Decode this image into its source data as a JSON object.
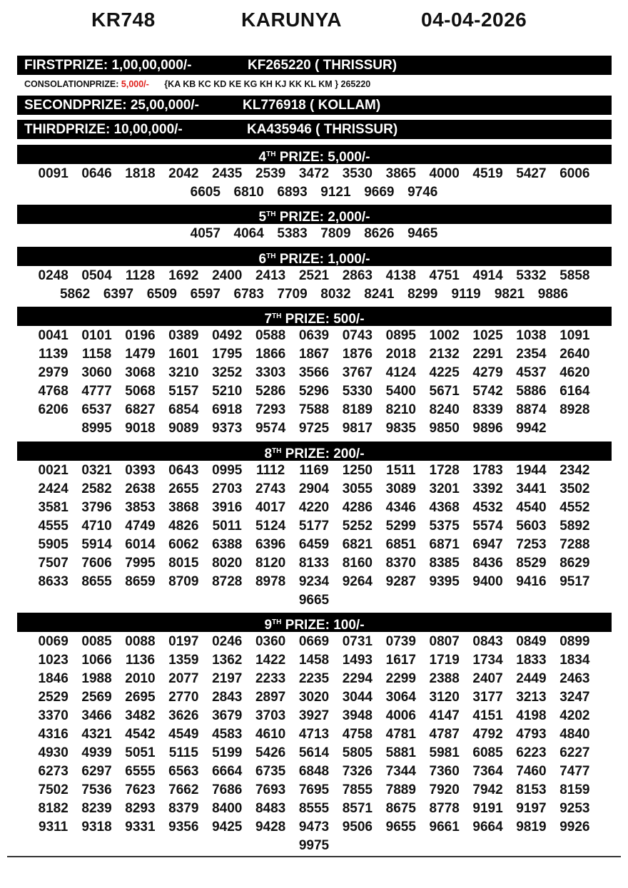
{
  "header": {
    "draw_code": "KR748",
    "lottery_name": "KARUNYA",
    "date": "04-04-2026"
  },
  "first_prize": {
    "label": "FIRSTPRIZE: 1,00,00,000/-",
    "winner": "KF265220 ( THRISSUR)"
  },
  "consolation": {
    "label": "CONSOLATIONPRIZE:",
    "amount": "5,000/-",
    "series": "{KA KB KC KD KE KG KH KJ KK KL KM } 265220",
    "amount_color": "#e0201a"
  },
  "second_prize": {
    "label": "SECONDPRIZE: 25,00,000/-",
    "winner": "KL776918 ( KOLLAM)"
  },
  "third_prize": {
    "label": "THIRDPRIZE: 10,00,000/-",
    "winner": "KA435946 ( THRISSUR)"
  },
  "prizes": [
    {
      "ordinal": "4",
      "suffix": "TH",
      "label": " PRIZE: 5,000/-",
      "numbers": [
        "0091",
        "0646",
        "1818",
        "2042",
        "2435",
        "2539",
        "3472",
        "3530",
        "3865",
        "4000",
        "4519",
        "5427",
        "6006",
        "6605",
        "6810",
        "6893",
        "9121",
        "9669",
        "9746"
      ]
    },
    {
      "ordinal": "5",
      "suffix": "TH",
      "label": " PRIZE: 2,000/-",
      "numbers": [
        "4057",
        "4064",
        "5383",
        "7809",
        "8626",
        "9465"
      ]
    },
    {
      "ordinal": "6",
      "suffix": "TH",
      "label": " PRIZE: 1,000/-",
      "numbers": [
        "0248",
        "0504",
        "1128",
        "1692",
        "2400",
        "2413",
        "2521",
        "2863",
        "4138",
        "4751",
        "4914",
        "5332",
        "5858",
        "5862",
        "6397",
        "6509",
        "6597",
        "6783",
        "7709",
        "8032",
        "8241",
        "8299",
        "9119",
        "9821",
        "9886"
      ]
    },
    {
      "ordinal": "7",
      "suffix": "TH",
      "label": " PRIZE: 500/-",
      "numbers": [
        "0041",
        "0101",
        "0196",
        "0389",
        "0492",
        "0588",
        "0639",
        "0743",
        "0895",
        "1002",
        "1025",
        "1038",
        "1091",
        "1139",
        "1158",
        "1479",
        "1601",
        "1795",
        "1866",
        "1867",
        "1876",
        "2018",
        "2132",
        "2291",
        "2354",
        "2640",
        "2979",
        "3060",
        "3068",
        "3210",
        "3252",
        "3303",
        "3566",
        "3767",
        "4124",
        "4225",
        "4279",
        "4537",
        "4620",
        "4768",
        "4777",
        "5068",
        "5157",
        "5210",
        "5286",
        "5296",
        "5330",
        "5400",
        "5671",
        "5742",
        "5886",
        "6164",
        "6206",
        "6537",
        "6827",
        "6854",
        "6918",
        "7293",
        "7588",
        "8189",
        "8210",
        "8240",
        "8339",
        "8874",
        "8928",
        "8995",
        "9018",
        "9089",
        "9373",
        "9574",
        "9725",
        "9817",
        "9835",
        "9850",
        "9896",
        "9942"
      ]
    },
    {
      "ordinal": "8",
      "suffix": "TH",
      "label": " PRIZE: 200/-",
      "numbers": [
        "0021",
        "0321",
        "0393",
        "0643",
        "0995",
        "1112",
        "1169",
        "1250",
        "1511",
        "1728",
        "1783",
        "1944",
        "2342",
        "2424",
        "2582",
        "2638",
        "2655",
        "2703",
        "2743",
        "2904",
        "3055",
        "3089",
        "3201",
        "3392",
        "3441",
        "3502",
        "3581",
        "3796",
        "3853",
        "3868",
        "3916",
        "4017",
        "4220",
        "4286",
        "4346",
        "4368",
        "4532",
        "4540",
        "4552",
        "4555",
        "4710",
        "4749",
        "4826",
        "5011",
        "5124",
        "5177",
        "5252",
        "5299",
        "5375",
        "5574",
        "5603",
        "5892",
        "5905",
        "5914",
        "6014",
        "6062",
        "6388",
        "6396",
        "6459",
        "6821",
        "6851",
        "6871",
        "6947",
        "7253",
        "7288",
        "7507",
        "7606",
        "7995",
        "8015",
        "8020",
        "8120",
        "8133",
        "8160",
        "8370",
        "8385",
        "8436",
        "8529",
        "8629",
        "8633",
        "8655",
        "8659",
        "8709",
        "8728",
        "8978",
        "9234",
        "9264",
        "9287",
        "9395",
        "9400",
        "9416",
        "9517",
        "9665"
      ]
    },
    {
      "ordinal": "9",
      "suffix": "TH",
      "label": " PRIZE: 100/-",
      "numbers": [
        "0069",
        "0085",
        "0088",
        "0197",
        "0246",
        "0360",
        "0669",
        "0731",
        "0739",
        "0807",
        "0843",
        "0849",
        "0899",
        "1023",
        "1066",
        "1136",
        "1359",
        "1362",
        "1422",
        "1458",
        "1493",
        "1617",
        "1719",
        "1734",
        "1833",
        "1834",
        "1846",
        "1988",
        "2010",
        "2077",
        "2197",
        "2233",
        "2235",
        "2294",
        "2299",
        "2388",
        "2407",
        "2449",
        "2463",
        "2529",
        "2569",
        "2695",
        "2770",
        "2843",
        "2897",
        "3020",
        "3044",
        "3064",
        "3120",
        "3177",
        "3213",
        "3247",
        "3370",
        "3466",
        "3482",
        "3626",
        "3679",
        "3703",
        "3927",
        "3948",
        "4006",
        "4147",
        "4151",
        "4198",
        "4202",
        "4316",
        "4321",
        "4542",
        "4549",
        "4583",
        "4610",
        "4713",
        "4758",
        "4781",
        "4787",
        "4792",
        "4793",
        "4840",
        "4930",
        "4939",
        "5051",
        "5115",
        "5199",
        "5426",
        "5614",
        "5805",
        "5881",
        "5981",
        "6085",
        "6223",
        "6227",
        "6273",
        "6297",
        "6555",
        "6563",
        "6664",
        "6735",
        "6848",
        "7326",
        "7344",
        "7360",
        "7364",
        "7460",
        "7477",
        "7502",
        "7536",
        "7623",
        "7662",
        "7686",
        "7693",
        "7695",
        "7855",
        "7889",
        "7920",
        "7942",
        "8153",
        "8159",
        "8182",
        "8239",
        "8293",
        "8379",
        "8400",
        "8483",
        "8555",
        "8571",
        "8675",
        "8778",
        "9191",
        "9197",
        "9253",
        "9311",
        "9318",
        "9331",
        "9356",
        "9425",
        "9428",
        "9473",
        "9506",
        "9655",
        "9661",
        "9664",
        "9819",
        "9926",
        "9975"
      ]
    }
  ]
}
